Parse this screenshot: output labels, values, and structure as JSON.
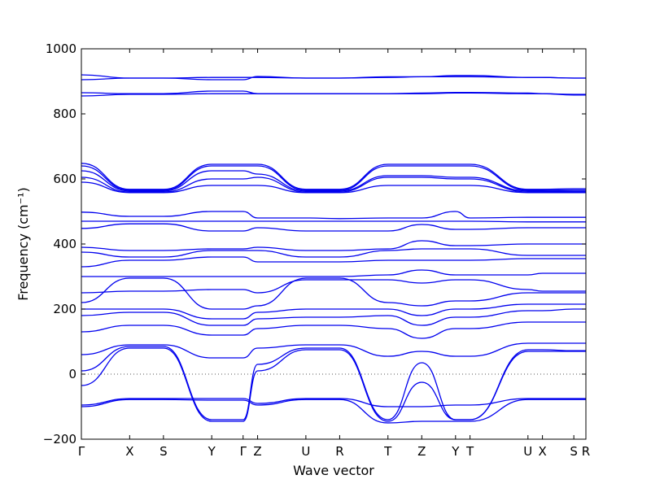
{
  "chart_data": {
    "type": "line",
    "title": "",
    "xlabel": "Wave vector",
    "ylabel": "Frequency (cm⁻¹)",
    "ylim": [
      -200,
      1000
    ],
    "yticks": [
      "−200",
      "0",
      "200",
      "400",
      "600",
      "800",
      "1000"
    ],
    "ytick_values": [
      -200,
      0,
      200,
      400,
      600,
      800,
      1000
    ],
    "xlim": [
      0,
      20.9
    ],
    "xticks": [
      {
        "label": "Γ",
        "x": 0
      },
      {
        "label": "X",
        "x": 2.0
      },
      {
        "label": "S",
        "x": 3.4
      },
      {
        "label": "Y",
        "x": 5.4
      },
      {
        "label": "Γ",
        "x": 6.7
      },
      {
        "label": "Z",
        "x": 7.3
      },
      {
        "label": "U",
        "x": 9.3
      },
      {
        "label": "R",
        "x": 10.7
      },
      {
        "label": "T",
        "x": 12.7
      },
      {
        "label": "Z",
        "x": 14.1
      },
      {
        "label": "Y",
        "x": 15.5
      },
      {
        "label": "T",
        "x": 16.1
      },
      {
        "label": "U",
        "x": 18.5
      },
      {
        "label": "X",
        "x": 19.1
      },
      {
        "label": "S",
        "x": 20.4
      },
      {
        "label": "R",
        "x": 20.9
      }
    ],
    "zero_line": {
      "y": 0,
      "style": "dotted"
    },
    "line_color": "#0000ee",
    "series": [
      {
        "values_at_ticks": [
          920,
          910,
          910,
          912,
          912,
          912,
          910,
          910,
          912,
          914,
          914,
          914,
          912,
          912,
          910,
          910
        ]
      },
      {
        "values_at_ticks": [
          905,
          910,
          910,
          905,
          905,
          915,
          910,
          910,
          914,
          914,
          918,
          918,
          912,
          912,
          910,
          910
        ]
      },
      {
        "values_at_ticks": [
          865,
          862,
          862,
          870,
          870,
          862,
          862,
          862,
          862,
          864,
          866,
          866,
          864,
          862,
          860,
          860
        ]
      },
      {
        "values_at_ticks": [
          855,
          860,
          860,
          862,
          862,
          862,
          862,
          862,
          862,
          862,
          864,
          864,
          862,
          862,
          858,
          858
        ]
      },
      {
        "values_at_ticks": [
          648,
          568,
          568,
          645,
          645,
          645,
          568,
          568,
          645,
          645,
          645,
          645,
          568,
          568,
          570,
          570
        ]
      },
      {
        "values_at_ticks": [
          640,
          565,
          565,
          640,
          640,
          640,
          565,
          565,
          640,
          640,
          640,
          640,
          565,
          565,
          566,
          566
        ]
      },
      {
        "values_at_ticks": [
          625,
          563,
          563,
          625,
          625,
          615,
          563,
          563,
          610,
          610,
          605,
          605,
          563,
          563,
          562,
          562
        ]
      },
      {
        "values_at_ticks": [
          605,
          560,
          560,
          600,
          600,
          605,
          560,
          560,
          605,
          605,
          600,
          600,
          560,
          560,
          560,
          560
        ]
      },
      {
        "values_at_ticks": [
          590,
          558,
          558,
          580,
          580,
          580,
          558,
          558,
          580,
          580,
          580,
          580,
          558,
          558,
          558,
          558
        ]
      },
      {
        "values_at_ticks": [
          498,
          485,
          485,
          500,
          500,
          480,
          480,
          478,
          480,
          480,
          500,
          480,
          482,
          482,
          482,
          482
        ]
      },
      {
        "values_at_ticks": [
          470,
          470,
          470,
          470,
          470,
          470,
          470,
          470,
          470,
          470,
          470,
          470,
          468,
          468,
          468,
          468
        ]
      },
      {
        "values_at_ticks": [
          448,
          462,
          462,
          440,
          440,
          450,
          440,
          440,
          440,
          460,
          445,
          445,
          450,
          450,
          450,
          450
        ]
      },
      {
        "values_at_ticks": [
          390,
          380,
          380,
          385,
          385,
          390,
          380,
          380,
          385,
          410,
          395,
          395,
          400,
          400,
          400,
          400
        ]
      },
      {
        "values_at_ticks": [
          375,
          360,
          360,
          380,
          380,
          380,
          360,
          360,
          380,
          385,
          385,
          385,
          365,
          365,
          365,
          365
        ]
      },
      {
        "values_at_ticks": [
          330,
          350,
          350,
          360,
          360,
          345,
          345,
          345,
          350,
          350,
          350,
          350,
          355,
          355,
          355,
          355
        ]
      },
      {
        "values_at_ticks": [
          300,
          300,
          300,
          300,
          300,
          300,
          300,
          300,
          305,
          320,
          305,
          305,
          305,
          310,
          310,
          310
        ]
      },
      {
        "values_at_ticks": [
          250,
          255,
          255,
          260,
          260,
          250,
          290,
          290,
          290,
          280,
          290,
          290,
          260,
          255,
          255,
          255
        ]
      },
      {
        "values_at_ticks": [
          220,
          295,
          295,
          200,
          200,
          210,
          295,
          295,
          220,
          210,
          225,
          225,
          250,
          250,
          250,
          250
        ]
      },
      {
        "values_at_ticks": [
          200,
          200,
          200,
          170,
          170,
          190,
          200,
          200,
          200,
          180,
          200,
          200,
          215,
          215,
          215,
          215
        ]
      },
      {
        "values_at_ticks": [
          180,
          190,
          190,
          150,
          150,
          170,
          175,
          175,
          180,
          150,
          175,
          175,
          195,
          195,
          200,
          200
        ]
      },
      {
        "values_at_ticks": [
          130,
          150,
          150,
          120,
          120,
          140,
          150,
          150,
          140,
          110,
          140,
          140,
          160,
          160,
          160,
          160
        ]
      },
      {
        "values_at_ticks": [
          60,
          90,
          90,
          50,
          50,
          80,
          90,
          90,
          55,
          70,
          55,
          55,
          95,
          95,
          95,
          95
        ]
      },
      {
        "values_at_ticks": [
          10,
          85,
          85,
          -140,
          -140,
          30,
          80,
          80,
          -140,
          35,
          -140,
          -140,
          75,
          75,
          72,
          72
        ]
      },
      {
        "values_at_ticks": [
          -35,
          80,
          80,
          -145,
          -145,
          10,
          75,
          75,
          -145,
          -25,
          -140,
          -140,
          70,
          70,
          70,
          70
        ]
      },
      {
        "values_at_ticks": [
          -100,
          -78,
          -78,
          -80,
          -80,
          -95,
          -78,
          -78,
          -150,
          -145,
          -145,
          -145,
          -78,
          -78,
          -78,
          -78
        ]
      },
      {
        "values_at_ticks": [
          -95,
          -75,
          -75,
          -75,
          -75,
          -90,
          -75,
          -75,
          -100,
          -100,
          -95,
          -95,
          -75,
          -75,
          -75,
          -75
        ]
      }
    ]
  }
}
